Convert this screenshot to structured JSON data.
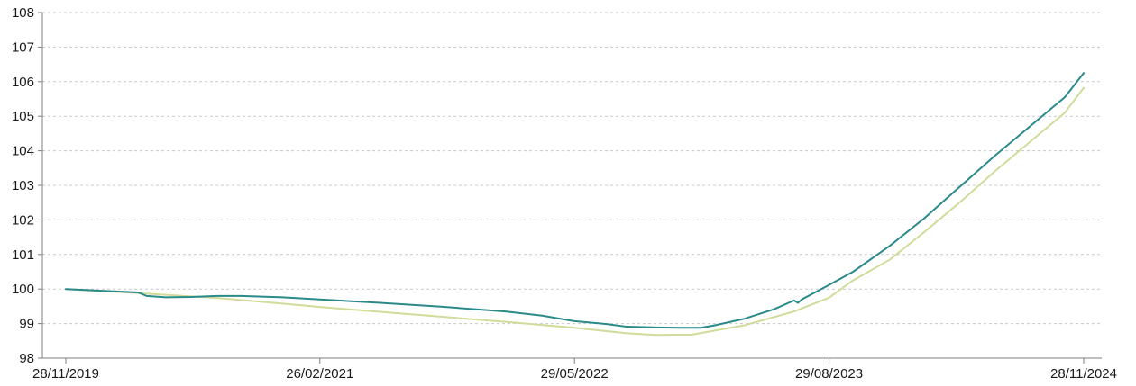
{
  "chart_data": {
    "type": "line",
    "title": "",
    "xlabel": "",
    "ylabel": "",
    "ylim": [
      98,
      108
    ],
    "yticks": [
      98,
      99,
      100,
      101,
      102,
      103,
      104,
      105,
      106,
      107,
      108
    ],
    "ytick_labels": [
      "98",
      "99",
      "100",
      "101",
      "102",
      "103",
      "104",
      "105",
      "106",
      "107",
      "108"
    ],
    "xlim": [
      "2019-11-28",
      "2024-11-28"
    ],
    "xticks": [
      "2019-11-28",
      "2021-02-26",
      "2022-05-29",
      "2023-08-29",
      "2024-11-28"
    ],
    "xtick_labels": [
      "28/11/2019",
      "26/02/2021",
      "29/05/2022",
      "29/08/2023",
      "28/11/2024"
    ],
    "grid": {
      "y": true,
      "style": "dashed"
    },
    "legend": "none",
    "series": [
      {
        "color": "#2a8a8a",
        "points": [
          [
            "2019-11-28",
            100.0
          ],
          [
            "2020-02-01",
            99.95
          ],
          [
            "2020-04-06",
            99.9
          ],
          [
            "2020-04-21",
            99.8
          ],
          [
            "2020-05-26",
            99.76
          ],
          [
            "2020-07-09",
            99.77
          ],
          [
            "2020-08-26",
            99.8
          ],
          [
            "2020-10-08",
            99.8
          ],
          [
            "2020-12-21",
            99.76
          ],
          [
            "2021-02-26",
            99.7
          ],
          [
            "2021-06-14",
            99.6
          ],
          [
            "2021-10-01",
            99.49
          ],
          [
            "2022-01-25",
            99.35
          ],
          [
            "2022-04-01",
            99.23
          ],
          [
            "2022-05-29",
            99.07
          ],
          [
            "2022-07-24",
            98.99
          ],
          [
            "2022-08-31",
            98.91
          ],
          [
            "2022-10-22",
            98.89
          ],
          [
            "2022-12-05",
            98.88
          ],
          [
            "2023-01-11",
            98.88
          ],
          [
            "2023-02-05",
            98.95
          ],
          [
            "2023-03-30",
            99.14
          ],
          [
            "2023-05-23",
            99.42
          ],
          [
            "2023-06-27",
            99.67
          ],
          [
            "2023-07-04",
            99.6
          ],
          [
            "2023-07-11",
            99.7
          ],
          [
            "2023-08-29",
            100.12
          ],
          [
            "2023-10-11",
            100.5
          ],
          [
            "2023-12-16",
            101.25
          ],
          [
            "2024-02-16",
            102.05
          ],
          [
            "2024-04-19",
            102.95
          ],
          [
            "2024-06-21",
            103.85
          ],
          [
            "2024-08-23",
            104.7
          ],
          [
            "2024-10-25",
            105.55
          ],
          [
            "2024-11-28",
            106.25
          ]
        ]
      },
      {
        "color": "#cfdc9a",
        "points": [
          [
            "2019-11-28",
            100.0
          ],
          [
            "2020-04-06",
            99.88
          ],
          [
            "2020-08-26",
            99.74
          ],
          [
            "2020-12-21",
            99.58
          ],
          [
            "2021-02-26",
            99.48
          ],
          [
            "2021-06-14",
            99.34
          ],
          [
            "2021-10-01",
            99.2
          ],
          [
            "2022-01-25",
            99.05
          ],
          [
            "2022-05-29",
            98.88
          ],
          [
            "2022-08-31",
            98.72
          ],
          [
            "2022-10-22",
            98.67
          ],
          [
            "2022-12-26",
            98.68
          ],
          [
            "2023-03-30",
            98.95
          ],
          [
            "2023-06-27",
            99.35
          ],
          [
            "2023-08-29",
            99.75
          ],
          [
            "2023-10-11",
            100.25
          ],
          [
            "2023-12-16",
            100.85
          ],
          [
            "2024-02-16",
            101.65
          ],
          [
            "2024-04-19",
            102.5
          ],
          [
            "2024-06-21",
            103.4
          ],
          [
            "2024-08-23",
            104.25
          ],
          [
            "2024-10-25",
            105.1
          ],
          [
            "2024-11-28",
            105.82
          ]
        ]
      }
    ]
  }
}
